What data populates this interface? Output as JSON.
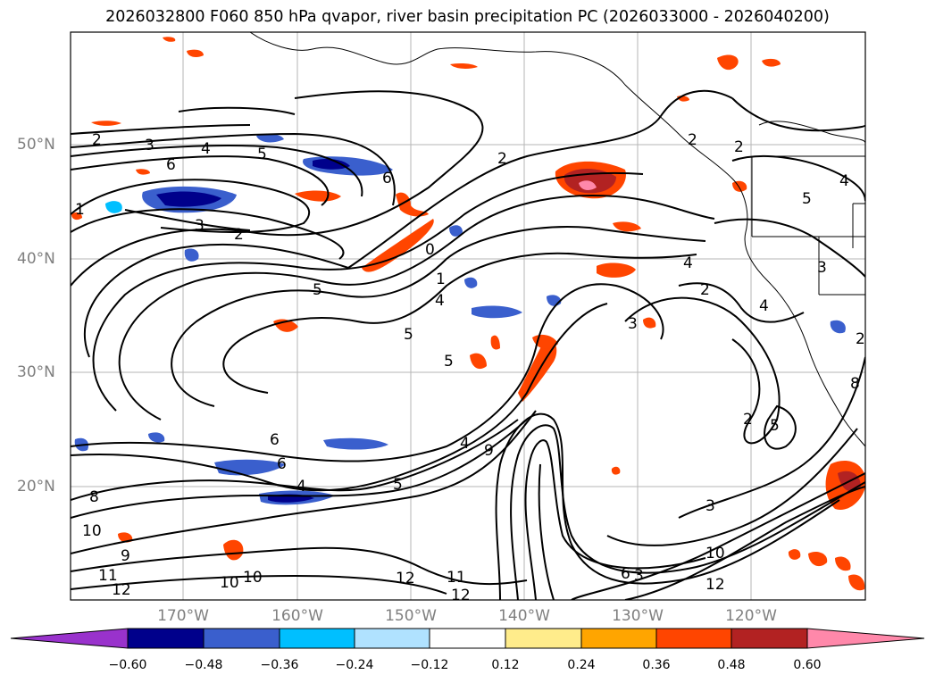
{
  "title": "2026032800 F060 850 hPa qvapor, river basin precipitation PC (2026033000 - 2026040200)",
  "lat_labels": [
    "50°N",
    "40°N",
    "30°N",
    "20°N"
  ],
  "lon_labels": [
    "170°W",
    "160°W",
    "150°W",
    "140°W",
    "130°W",
    "120°W"
  ],
  "colorbar": {
    "tick_labels": [
      "−0.60",
      "−0.48",
      "−0.36",
      "−0.24",
      "−0.12",
      "0.12",
      "0.24",
      "0.36",
      "0.48",
      "0.60"
    ],
    "colors": [
      "#9932cc",
      "#00008b",
      "#3a5fcd",
      "#00bfff",
      "#b0e2ff",
      "#ffffff",
      "#ffec8b",
      "#ffa500",
      "#ff4500",
      "#b22222",
      "#ff88aa"
    ]
  },
  "contour_labels": [
    "2",
    "3",
    "4",
    "5",
    "6",
    "6",
    "1",
    "3",
    "2",
    "2",
    "0",
    "5",
    "1",
    "4",
    "5",
    "5",
    "9",
    "6",
    "4",
    "6",
    "5",
    "8",
    "10",
    "9",
    "10",
    "10",
    "12",
    "12",
    "11",
    "12",
    "6",
    "3",
    "3",
    "11",
    "12",
    "10",
    "2",
    "4",
    "2",
    "4",
    "3",
    "2",
    "5",
    "4",
    "8",
    "3",
    "2",
    "5",
    "4",
    "2"
  ]
}
